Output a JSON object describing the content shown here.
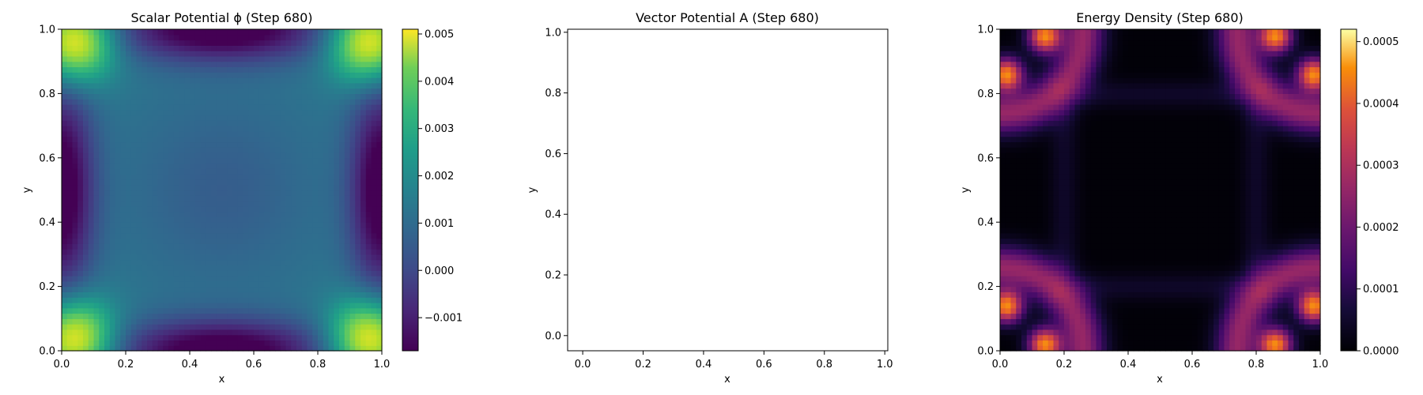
{
  "chart_data": [
    {
      "type": "heatmap",
      "title": "Scalar Potential ϕ (Step 680)",
      "xlabel": "x",
      "ylabel": "y",
      "xlim": [
        0,
        1
      ],
      "ylim": [
        0,
        1
      ],
      "xticks": [
        "0.0",
        "0.2",
        "0.4",
        "0.6",
        "0.8",
        "1.0"
      ],
      "yticks": [
        "0.0",
        "0.2",
        "0.4",
        "0.6",
        "0.8",
        "1.0"
      ],
      "colormap": "viridis",
      "colorbar": {
        "min": -0.0017,
        "max": 0.0051,
        "ticks": [
          {
            "value": -0.001,
            "label": "−0.001"
          },
          {
            "value": 0.0,
            "label": "0.000"
          },
          {
            "value": 0.001,
            "label": "0.001"
          },
          {
            "value": 0.002,
            "label": "0.002"
          },
          {
            "value": 0.003,
            "label": "0.003"
          },
          {
            "value": 0.004,
            "label": "0.004"
          },
          {
            "value": 0.005,
            "label": "0.005"
          }
        ]
      },
      "grid": false
    },
    {
      "type": "line",
      "title": "Vector Potential A (Step 680)",
      "xlabel": "x",
      "ylabel": "y",
      "xlim": [
        -0.05,
        1.01
      ],
      "ylim": [
        -0.05,
        1.01
      ],
      "xticks": [
        "0.0",
        "0.2",
        "0.4",
        "0.6",
        "0.8",
        "1.0"
      ],
      "yticks": [
        "0.0",
        "0.2",
        "0.4",
        "0.6",
        "0.8",
        "1.0"
      ],
      "series": [],
      "grid": false
    },
    {
      "type": "heatmap",
      "title": "Energy Density (Step 680)",
      "xlabel": "x",
      "ylabel": "y",
      "xlim": [
        0,
        1
      ],
      "ylim": [
        0,
        1
      ],
      "xticks": [
        "0.0",
        "0.2",
        "0.4",
        "0.6",
        "0.8",
        "1.0"
      ],
      "yticks": [
        "0.0",
        "0.2",
        "0.4",
        "0.6",
        "0.8",
        "1.0"
      ],
      "colormap": "inferno",
      "colorbar": {
        "min": 0.0,
        "max": 0.00052,
        "ticks": [
          {
            "value": 0.0,
            "label": "0.0000"
          },
          {
            "value": 0.0001,
            "label": "0.0001"
          },
          {
            "value": 0.0002,
            "label": "0.0002"
          },
          {
            "value": 0.0003,
            "label": "0.0003"
          },
          {
            "value": 0.0004,
            "label": "0.0004"
          },
          {
            "value": 0.0005,
            "label": "0.0005"
          }
        ]
      },
      "grid": false
    }
  ]
}
